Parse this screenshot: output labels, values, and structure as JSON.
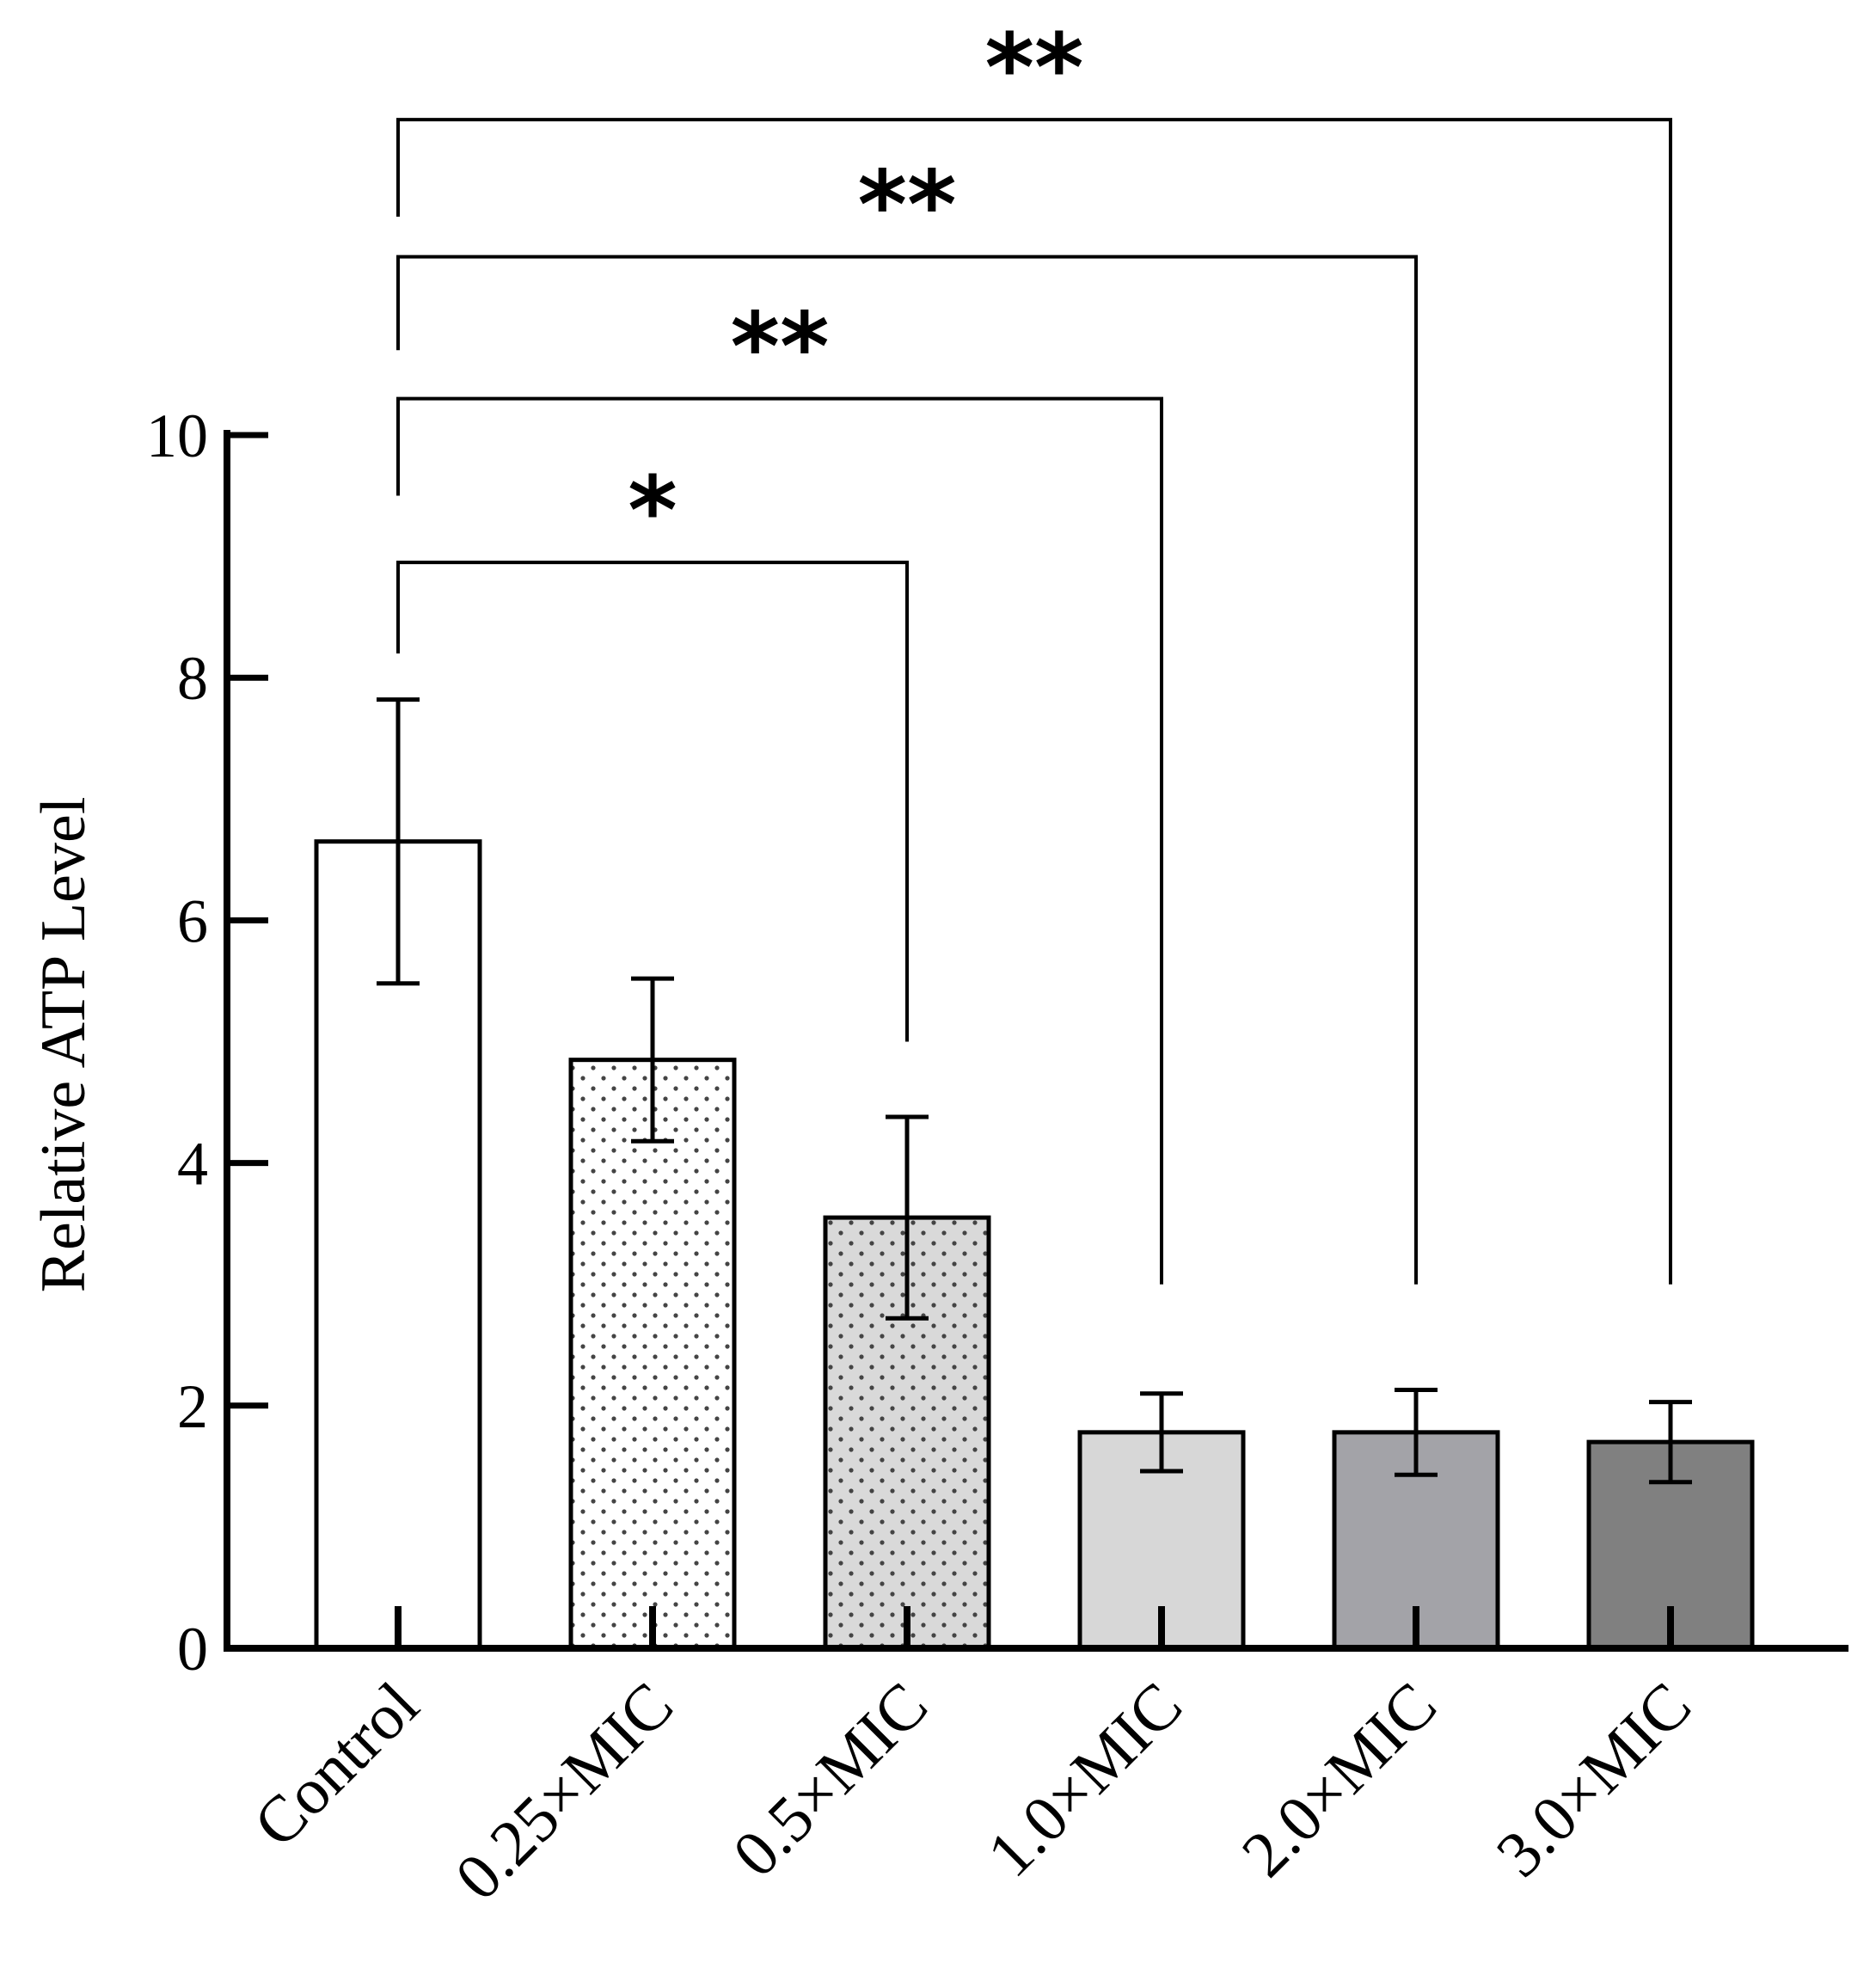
{
  "chart_data": {
    "type": "bar",
    "title": "",
    "xlabel": "",
    "ylabel": "Relative ATP Level",
    "ylim": [
      0,
      10
    ],
    "yticks": [
      0,
      2,
      4,
      6,
      8,
      10
    ],
    "ytick_labels": [
      "0",
      "2",
      "4",
      "6",
      "8",
      "10"
    ],
    "grid": false,
    "categories": [
      "Control",
      "0.25×MIC",
      "0.5×MIC",
      "1.0×MIC",
      "2.0×MIC",
      "3.0×MIC"
    ],
    "values": [
      6.65,
      4.85,
      3.55,
      1.78,
      1.78,
      1.7
    ],
    "errors": [
      1.17,
      0.67,
      0.83,
      0.32,
      0.35,
      0.33
    ],
    "fills": [
      "#ffffff",
      "#ffffff",
      "#d9d9d9",
      "#d7d7d7",
      "#a3a3a8",
      "#808080"
    ],
    "dotted": [
      false,
      true,
      true,
      false,
      false,
      false
    ],
    "significance": [
      {
        "from": 0,
        "to": 2,
        "label": "*",
        "bracket_y": 8.95,
        "start_y": 8.2,
        "end_y": 5.0
      },
      {
        "from": 0,
        "to": 3,
        "label": "**",
        "bracket_y": 10.3,
        "start_y": 9.5,
        "end_y": 3.0
      },
      {
        "from": 0,
        "to": 4,
        "label": "**",
        "bracket_y": 11.47,
        "start_y": 10.7,
        "end_y": 3.0
      },
      {
        "from": 0,
        "to": 5,
        "label": "**",
        "bracket_y": 12.6,
        "start_y": 11.8,
        "end_y": 3.0
      }
    ]
  }
}
